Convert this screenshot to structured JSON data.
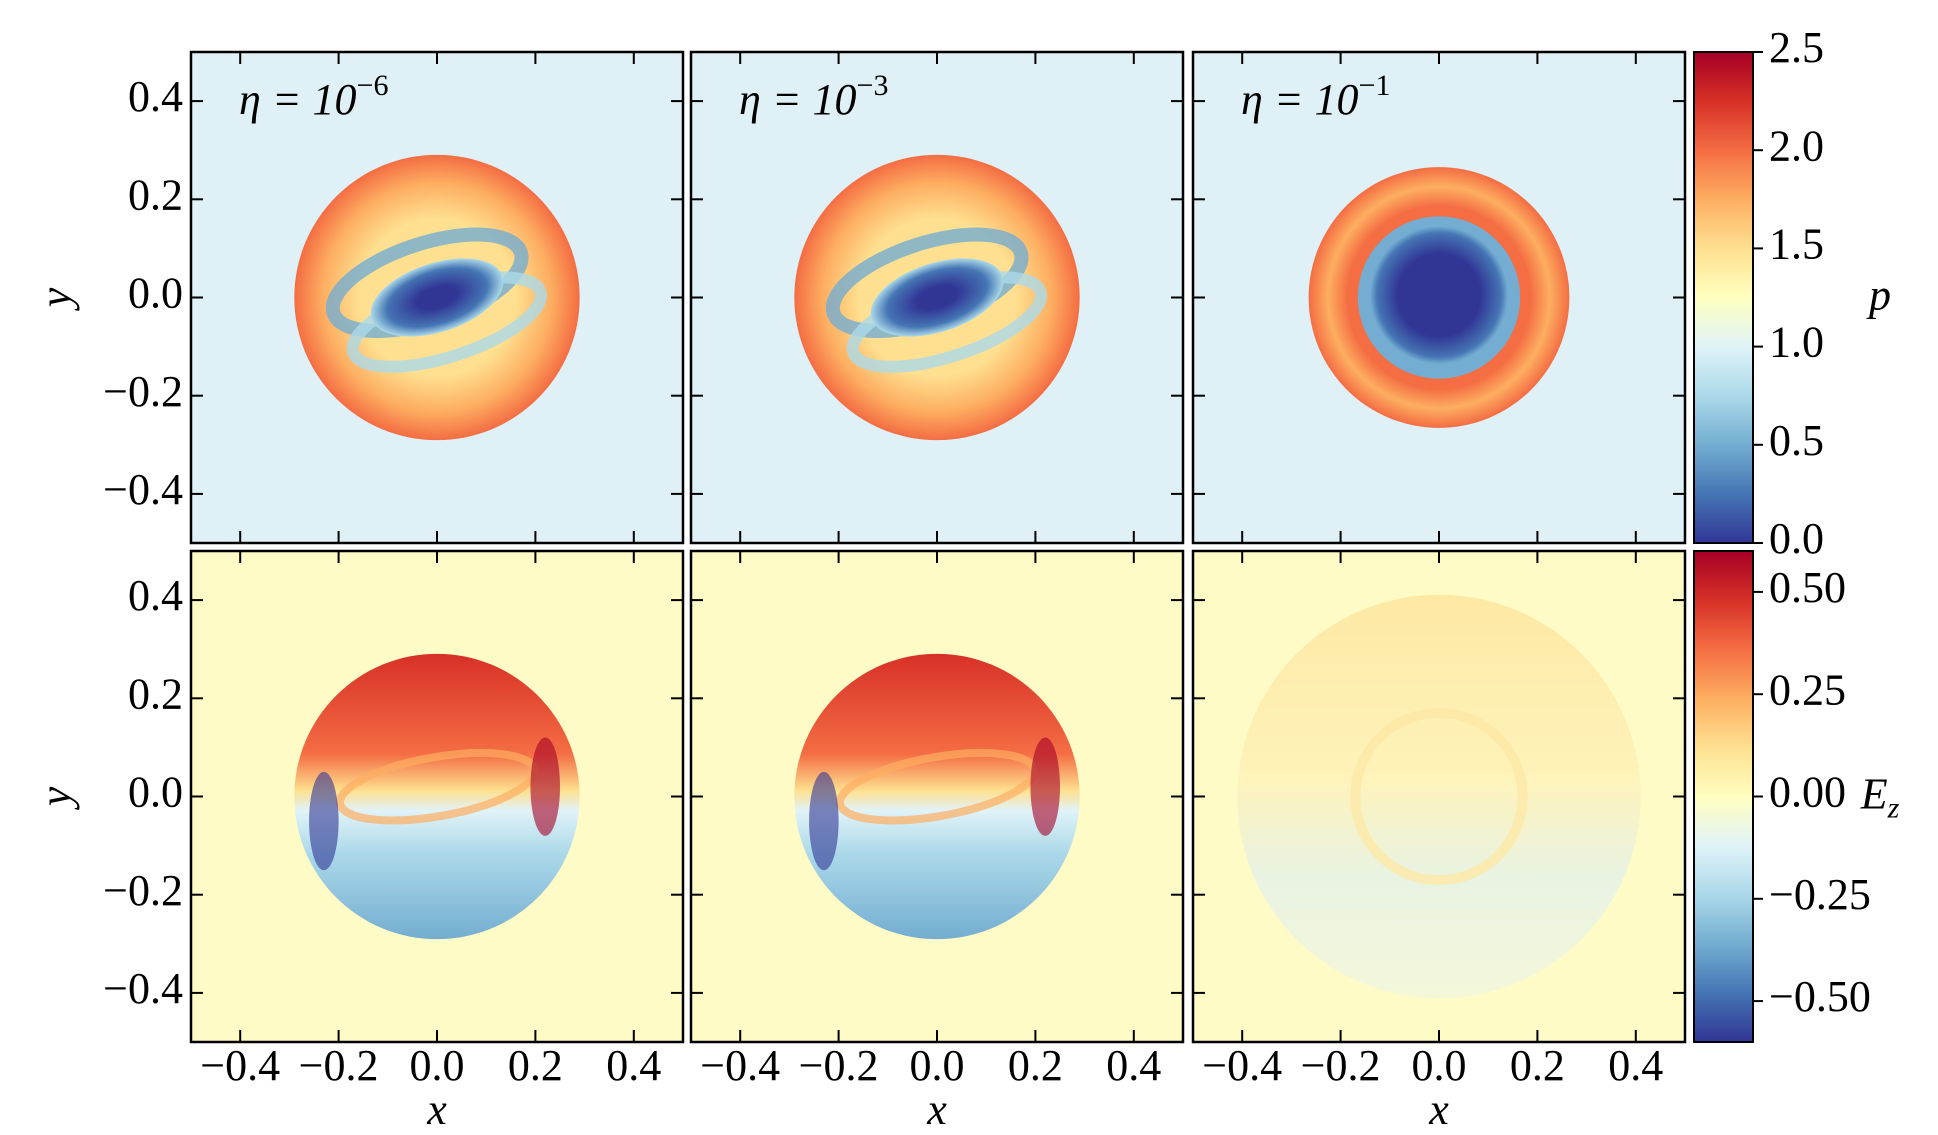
{
  "chart_data": [
    {
      "type": "heatmap",
      "background": "#dff1f6",
      "annotation": {
        "base": "η = 10",
        "exponent": "−6"
      },
      "ylabel": "y",
      "xlim": [
        -0.5,
        0.5
      ],
      "ylim": [
        -0.5,
        0.5
      ],
      "xticks": [
        {
          "value": -0.4,
          "label": "−0.4"
        },
        {
          "value": -0.2,
          "label": "−0.2"
        },
        {
          "value": 0,
          "label": "0.0"
        },
        0.2,
        0.4
      ],
      "yticks": [
        {
          "value": -0.4,
          "label": "−0.4"
        },
        {
          "value": -0.2,
          "label": "−0.2"
        },
        {
          "value": 0,
          "label": "0.0"
        },
        0.2,
        0.4
      ],
      "xticklabels": false,
      "yticklabels": true
    },
    {
      "type": "heatmap",
      "background": "#dff1f6",
      "annotation": {
        "base": "η = 10",
        "exponent": "−3"
      },
      "xlim": [
        -0.5,
        0.5
      ],
      "ylim": [
        -0.5,
        0.5
      ],
      "xticks": [
        {
          "value": -0.4,
          "label": "−0.4"
        },
        {
          "value": -0.2,
          "label": "−0.2"
        },
        {
          "value": 0,
          "label": "0.0"
        },
        0.2,
        0.4
      ],
      "yticks": [
        {
          "value": -0.4,
          "label": "−0.4"
        },
        {
          "value": -0.2,
          "label": "−0.2"
        },
        {
          "value": 0,
          "label": "0.0"
        },
        0.2,
        0.4
      ],
      "xticklabels": false,
      "yticklabels": false
    },
    {
      "type": "heatmap",
      "background": "#dff1f6",
      "annotation": {
        "base": "η = 10",
        "exponent": "−1"
      },
      "xlim": [
        -0.5,
        0.5
      ],
      "ylim": [
        -0.5,
        0.5
      ],
      "xticks": [
        {
          "value": -0.4,
          "label": "−0.4"
        },
        {
          "value": -0.2,
          "label": "−0.2"
        },
        {
          "value": 0,
          "label": "0.0"
        },
        0.2,
        0.4
      ],
      "yticks": [
        {
          "value": -0.4,
          "label": "−0.4"
        },
        {
          "value": -0.2,
          "label": "−0.2"
        },
        {
          "value": 0,
          "label": "0.0"
        },
        0.2,
        0.4
      ],
      "xticklabels": false,
      "yticklabels": false
    },
    {
      "type": "heatmap",
      "background": "#fefbc6",
      "xlabel": "x",
      "ylabel": "y",
      "xlim": [
        -0.5,
        0.5
      ],
      "ylim": [
        -0.5,
        0.5
      ],
      "xticks": [
        {
          "value": -0.4,
          "label": "−0.4"
        },
        {
          "value": -0.2,
          "label": "−0.2"
        },
        {
          "value": 0,
          "label": "0.0"
        },
        0.2,
        0.4
      ],
      "yticks": [
        {
          "value": -0.4,
          "label": "−0.4"
        },
        {
          "value": -0.2,
          "label": "−0.2"
        },
        {
          "value": 0,
          "label": "0.0"
        },
        0.2,
        0.4
      ],
      "xticklabels": true,
      "yticklabels": true
    },
    {
      "type": "heatmap",
      "background": "#fefbc6",
      "xlabel": "x",
      "xlim": [
        -0.5,
        0.5
      ],
      "ylim": [
        -0.5,
        0.5
      ],
      "xticks": [
        {
          "value": -0.4,
          "label": "−0.4"
        },
        {
          "value": -0.2,
          "label": "−0.2"
        },
        {
          "value": 0,
          "label": "0.0"
        },
        0.2,
        0.4
      ],
      "yticks": [
        {
          "value": -0.4,
          "label": "−0.4"
        },
        {
          "value": -0.2,
          "label": "−0.2"
        },
        {
          "value": 0,
          "label": "0.0"
        },
        0.2,
        0.4
      ],
      "xticklabels": true,
      "yticklabels": false
    },
    {
      "type": "heatmap",
      "background": "#fefbc6",
      "xlabel": "x",
      "xlim": [
        -0.5,
        0.5
      ],
      "ylim": [
        -0.5,
        0.5
      ],
      "xticks": [
        {
          "value": -0.4,
          "label": "−0.4"
        },
        {
          "value": -0.2,
          "label": "−0.2"
        },
        {
          "value": 0,
          "label": "0.0"
        },
        0.2,
        0.4
      ],
      "yticks": [
        {
          "value": -0.4,
          "label": "−0.4"
        },
        {
          "value": -0.2,
          "label": "−0.2"
        },
        {
          "value": 0,
          "label": "0.0"
        },
        0.2,
        0.4
      ],
      "xticklabels": true,
      "yticklabels": false
    },
    {
      "type": "colorbar",
      "label": "p",
      "ylim": [
        0,
        2.5
      ],
      "yticks": [
        {
          "value": 0,
          "label": "0.0"
        },
        0.5,
        {
          "value": 1,
          "label": "1.0"
        },
        1.5,
        {
          "value": 2,
          "label": "2.0"
        },
        2.5
      ],
      "colormap": [
        "#313695",
        "#4575b4",
        "#74add1",
        "#abd9e9",
        "#e0f3f8",
        "#ffffbf",
        "#fee090",
        "#fdae61",
        "#f46d43",
        "#d73027",
        "#a50026"
      ]
    },
    {
      "type": "colorbar",
      "label": "E",
      "label_subscript": "z",
      "ylim": [
        -0.6,
        0.6
      ],
      "yticks": [
        {
          "value": -0.5,
          "label": "−0.50"
        },
        {
          "value": -0.25,
          "label": "−0.25"
        },
        {
          "value": 0,
          "label": "0.00"
        },
        0.25,
        {
          "value": 0.5,
          "label": "0.50"
        }
      ],
      "colormap": [
        "#313695",
        "#4575b4",
        "#74add1",
        "#abd9e9",
        "#e0f3f8",
        "#ffffbf",
        "#fee090",
        "#fdae61",
        "#f46d43",
        "#d73027",
        "#a50026"
      ]
    }
  ]
}
